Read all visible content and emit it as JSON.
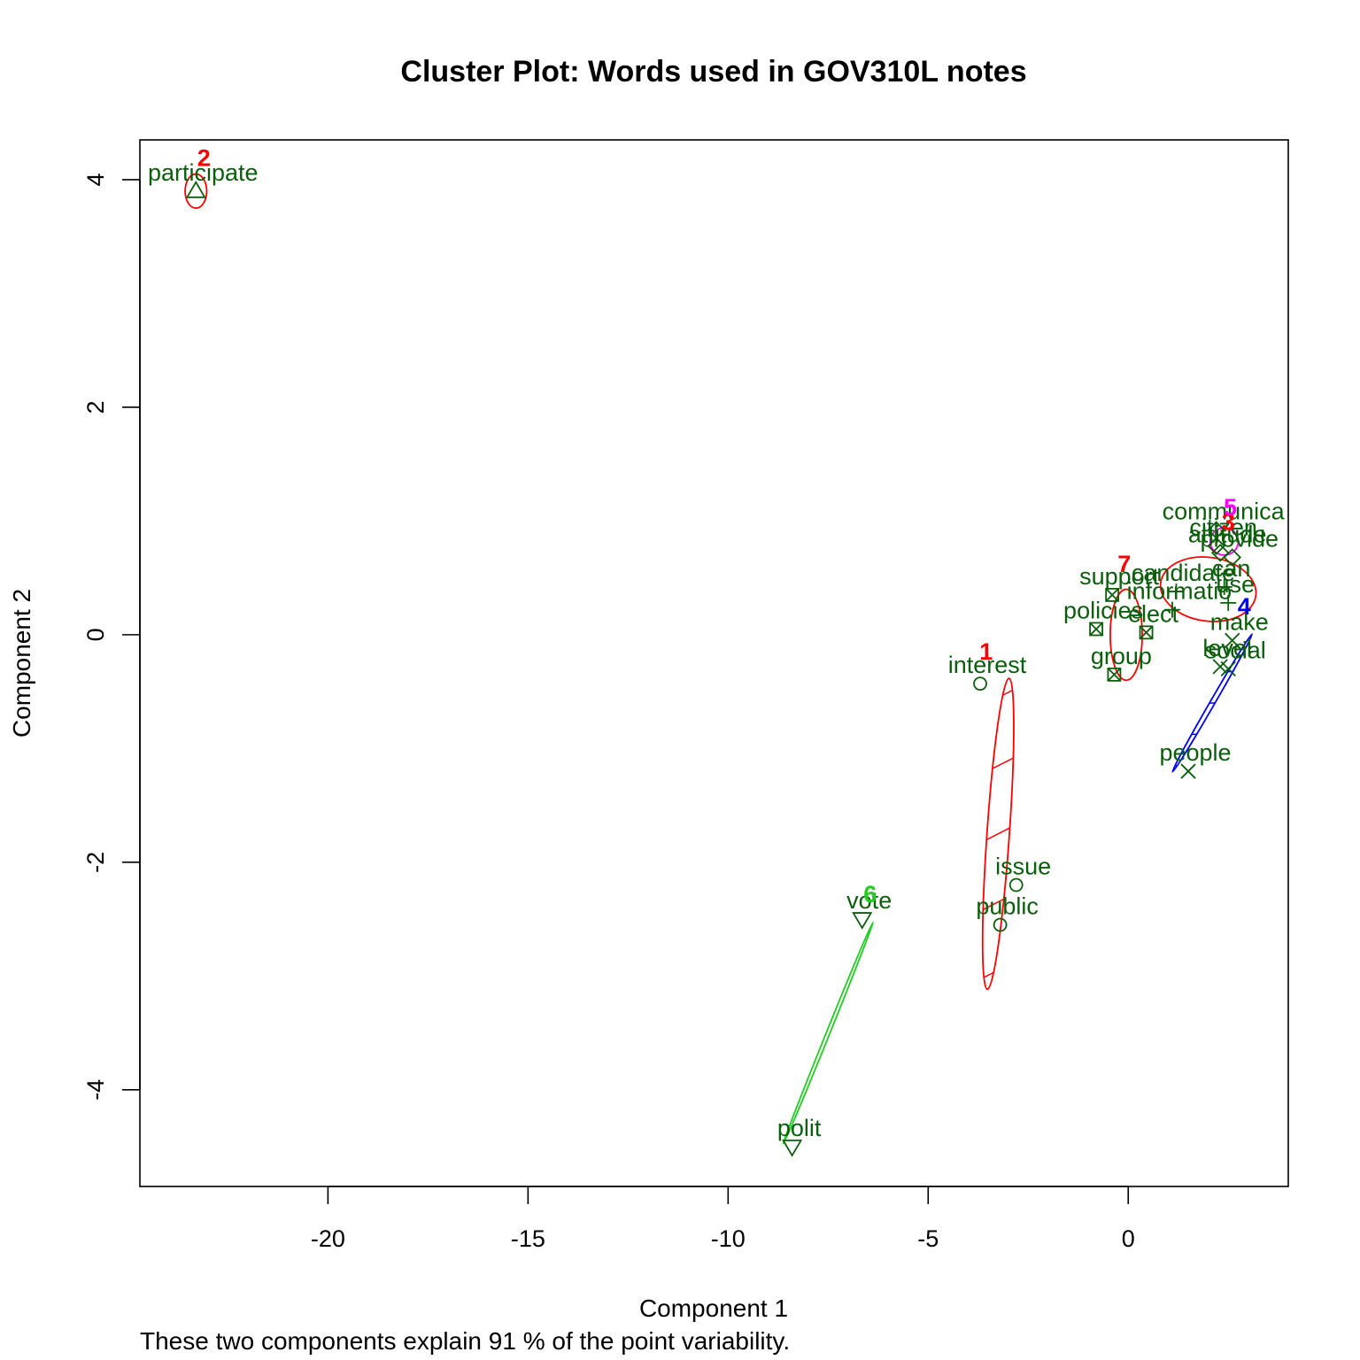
{
  "chart_data": {
    "type": "scatter",
    "title": "Cluster Plot: Words used in GOV310L notes",
    "xlabel": "Component 1",
    "ylabel": "Component 2",
    "caption": "These two components explain 91 % of the point variability.",
    "xlim": [
      -24.7,
      4.0
    ],
    "ylim": [
      -4.85,
      4.35
    ],
    "x_ticks": [
      -20,
      -15,
      -10,
      -5,
      0
    ],
    "y_ticks": [
      -4,
      -2,
      0,
      2,
      4
    ],
    "grid": false,
    "legend": "none",
    "colors": {
      "point": "#0b5e0b",
      "label": "#0b5e0b",
      "red": "#ff0000",
      "blue": "#0000ff",
      "green": "#22cc22",
      "magenta": "#ff00ff"
    },
    "points": [
      {
        "word": "participate",
        "x": -23.3,
        "y": 3.9,
        "cluster": 2,
        "shape": "triangle-up"
      },
      {
        "word": "interest",
        "x": -3.7,
        "y": -0.43,
        "cluster": 1,
        "shape": "circle"
      },
      {
        "word": "issue",
        "x": -2.8,
        "y": -2.2,
        "cluster": 1,
        "shape": "circle"
      },
      {
        "word": "public",
        "x": -3.2,
        "y": -2.55,
        "cluster": 1,
        "shape": "circle"
      },
      {
        "word": "vote",
        "x": -6.65,
        "y": -2.5,
        "cluster": 6,
        "shape": "triangle-down"
      },
      {
        "word": "polit",
        "x": -8.4,
        "y": -4.5,
        "cluster": 6,
        "shape": "triangle-down"
      },
      {
        "word": "support",
        "x": -0.4,
        "y": 0.35,
        "cluster": 7,
        "shape": "square-x"
      },
      {
        "word": "policies",
        "x": -0.8,
        "y": 0.05,
        "cluster": 7,
        "shape": "square-x"
      },
      {
        "word": "elect",
        "x": 0.45,
        "y": 0.02,
        "cluster": 7,
        "shape": "square-x"
      },
      {
        "word": "group",
        "x": -0.35,
        "y": -0.35,
        "cluster": 7,
        "shape": "square-x"
      },
      {
        "word": "candidate",
        "x": 1.2,
        "y": 0.38,
        "cluster": 3,
        "shape": "plus"
      },
      {
        "word": "can",
        "x": 2.4,
        "y": 0.42,
        "cluster": 3,
        "shape": "plus"
      },
      {
        "word": "use",
        "x": 2.5,
        "y": 0.28,
        "cluster": 3,
        "shape": "plus"
      },
      {
        "word": "informatio",
        "x": 1.1,
        "y": 0.22,
        "cluster": 3,
        "shape": "plus"
      },
      {
        "word": "communica",
        "x": 2.2,
        "y": 0.92,
        "cluster": 5,
        "shape": "diamond"
      },
      {
        "word": "citizen",
        "x": 2.2,
        "y": 0.78,
        "cluster": 5,
        "shape": "diamond"
      },
      {
        "word": "attitude",
        "x": 2.3,
        "y": 0.72,
        "cluster": 5,
        "shape": "diamond"
      },
      {
        "word": "provide",
        "x": 2.6,
        "y": 0.68,
        "cluster": 5,
        "shape": "diamond"
      },
      {
        "word": "make",
        "x": 2.6,
        "y": -0.05,
        "cluster": 4,
        "shape": "x"
      },
      {
        "word": "level",
        "x": 2.3,
        "y": -0.28,
        "cluster": 4,
        "shape": "x"
      },
      {
        "word": "social",
        "x": 2.5,
        "y": -0.3,
        "cluster": 4,
        "shape": "x"
      },
      {
        "word": "people",
        "x": 1.5,
        "y": -1.2,
        "cluster": 4,
        "shape": "x"
      }
    ],
    "clusters": [
      {
        "id": 1,
        "label": "1",
        "color": "#ff0000",
        "label_x": -3.55,
        "label_y": -0.22,
        "center": [
          -3.25,
          -1.75
        ],
        "semi_axes": [
          0.28,
          1.37
        ],
        "rotation_deg": 4,
        "shaded": true
      },
      {
        "id": 2,
        "label": "2",
        "color": "#ff0000",
        "label_x": -23.1,
        "label_y": 4.12,
        "center": [
          -23.3,
          3.9
        ],
        "semi_axes": [
          0.27,
          0.15
        ],
        "rotation_deg": 0,
        "shaded": false
      },
      {
        "id": 3,
        "label": "3",
        "color": "#ff0000",
        "label_x": 2.5,
        "label_y": 0.92,
        "center": [
          2.0,
          0.4
        ],
        "semi_axes": [
          1.2,
          0.28
        ],
        "rotation_deg": 8,
        "shaded": false
      },
      {
        "id": 4,
        "label": "4",
        "color": "#0000ff",
        "label_x": 2.9,
        "label_y": 0.18,
        "center": [
          2.1,
          -0.6
        ],
        "semi_axes": [
          0.06,
          0.7
        ],
        "rotation_deg": 30,
        "shaded": true
      },
      {
        "id": 5,
        "label": "5",
        "color": "#ff00ff",
        "label_x": 2.55,
        "label_y": 1.05,
        "center": [
          2.4,
          0.82
        ],
        "semi_axes": [
          0.35,
          0.12
        ],
        "rotation_deg": 0,
        "shaded": false
      },
      {
        "id": 6,
        "label": "6",
        "color": "#22cc22",
        "label_x": -6.45,
        "label_y": -2.35,
        "center": [
          -7.5,
          -3.5
        ],
        "semi_axes": [
          0.03,
          1.05
        ],
        "rotation_deg": 22,
        "shaded": false
      },
      {
        "id": 7,
        "label": "7",
        "color": "#ff0000",
        "label_x": -0.1,
        "label_y": 0.55,
        "center": [
          -0.05,
          0.0
        ],
        "semi_axes": [
          0.4,
          0.4
        ],
        "rotation_deg": 0,
        "shaded": false
      }
    ]
  }
}
